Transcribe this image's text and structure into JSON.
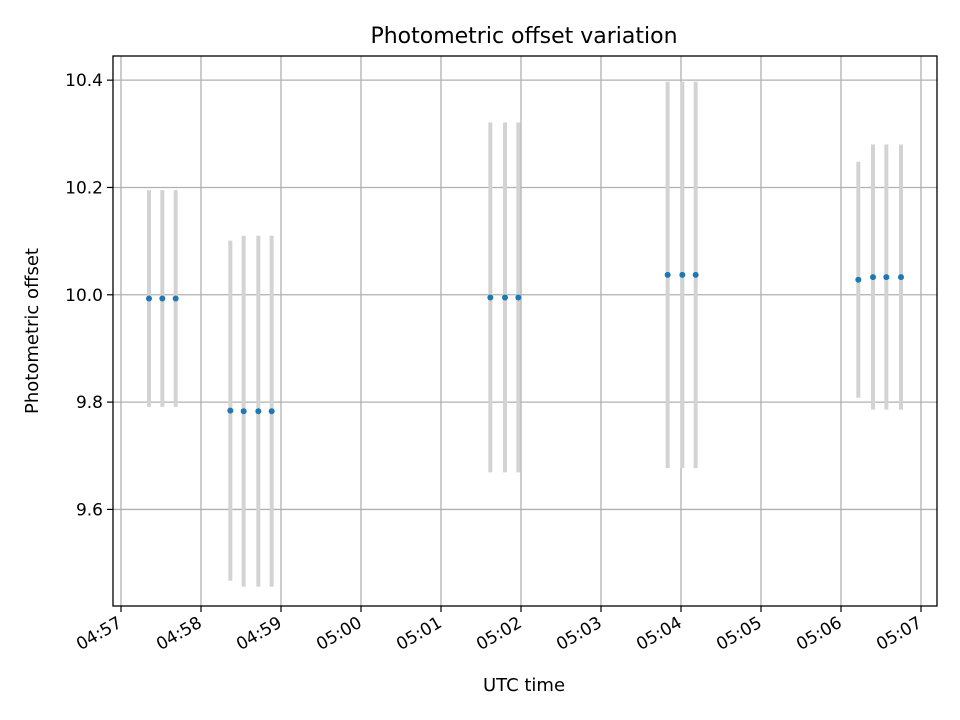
{
  "chart_data": {
    "type": "scatter",
    "title": "Photometric offset variation",
    "xlabel": "UTC time",
    "ylabel": "Photometric offset",
    "grid": true,
    "xlim": [
      "04:56:54",
      "05:07:12"
    ],
    "ylim": [
      9.42,
      10.445
    ],
    "x_ticks": [
      "04:57",
      "04:58",
      "04:59",
      "05:00",
      "05:01",
      "05:02",
      "05:03",
      "05:04",
      "05:05",
      "05:06",
      "05:07"
    ],
    "y_ticks": [
      "9.6",
      "9.8",
      "10.0",
      "10.2",
      "10.4"
    ],
    "colors": {
      "point": "#1f77b4",
      "errorbar": "#d3d3d3",
      "grid": "#b0b0b0"
    },
    "points": [
      {
        "x": "04:57:21",
        "y": 9.993,
        "err": 0.202
      },
      {
        "x": "04:57:31",
        "y": 9.993,
        "err": 0.202
      },
      {
        "x": "04:57:41",
        "y": 9.993,
        "err": 0.202
      },
      {
        "x": "04:58:22",
        "y": 9.784,
        "err": 0.317
      },
      {
        "x": "04:58:32",
        "y": 9.783,
        "err": 0.327
      },
      {
        "x": "04:58:43",
        "y": 9.783,
        "err": 0.327
      },
      {
        "x": "04:58:53",
        "y": 9.783,
        "err": 0.327
      },
      {
        "x": "05:01:37",
        "y": 9.995,
        "err": 0.326
      },
      {
        "x": "05:01:48",
        "y": 9.995,
        "err": 0.326
      },
      {
        "x": "05:01:58",
        "y": 9.995,
        "err": 0.326
      },
      {
        "x": "05:03:50",
        "y": 10.037,
        "err": 0.36
      },
      {
        "x": "05:04:01",
        "y": 10.037,
        "err": 0.36
      },
      {
        "x": "05:04:11",
        "y": 10.037,
        "err": 0.36
      },
      {
        "x": "05:06:13",
        "y": 10.028,
        "err": 0.22
      },
      {
        "x": "05:06:24",
        "y": 10.033,
        "err": 0.247
      },
      {
        "x": "05:06:34",
        "y": 10.033,
        "err": 0.247
      },
      {
        "x": "05:06:45",
        "y": 10.033,
        "err": 0.247
      }
    ]
  }
}
